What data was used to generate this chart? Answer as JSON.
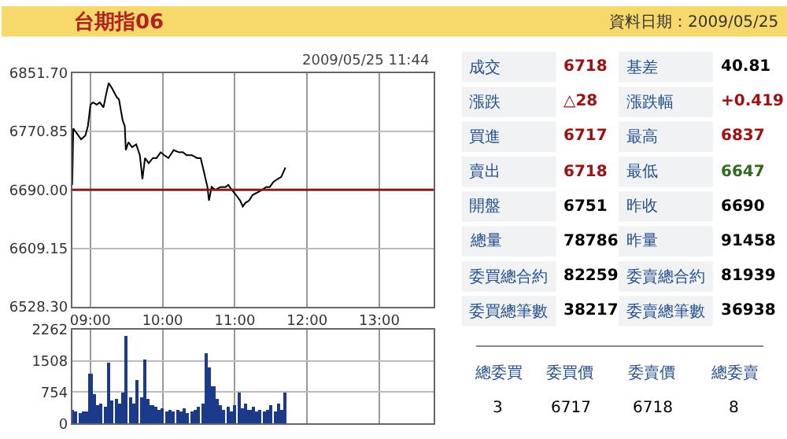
{
  "chart_data": [
    {
      "type": "line",
      "title": "台期指06",
      "subtitle": "2009/05/25 11:44",
      "x": [
        8.75,
        8.764,
        8.822,
        8.872,
        8.93,
        8.966,
        9.002,
        9.038,
        9.088,
        9.131,
        9.182,
        9.218,
        9.254,
        9.304,
        9.362,
        9.397,
        9.448,
        9.477,
        9.491,
        9.527,
        9.577,
        9.635,
        9.685,
        9.721,
        9.757,
        9.808,
        9.865,
        9.916,
        9.973,
        10.023,
        10.081,
        10.153,
        10.225,
        10.282,
        10.333,
        10.405,
        10.477,
        10.527,
        10.57,
        10.621,
        10.642,
        10.678,
        10.728,
        10.8,
        10.872,
        10.908,
        10.959,
        11.016,
        11.074,
        11.11,
        11.146,
        11.196,
        11.246,
        11.304,
        11.376,
        11.433,
        11.484,
        11.534,
        11.592,
        11.642,
        11.7
      ],
      "series": [
        {
          "color": "#000000",
          "values": [
            6697,
            6775,
            6767,
            6760,
            6765,
            6778,
            6808,
            6811,
            6808,
            6811,
            6804,
            6822,
            6838,
            6830,
            6819,
            6815,
            6786,
            6778,
            6745,
            6756,
            6749,
            6753,
            6738,
            6705,
            6734,
            6727,
            6734,
            6734,
            6742,
            6738,
            6734,
            6745,
            6742,
            6742,
            6738,
            6738,
            6734,
            6734,
            6716,
            6694,
            6675,
            6694,
            6690,
            6694,
            6694,
            6697,
            6690,
            6683,
            6675,
            6667,
            6672,
            6675,
            6683,
            6686,
            6690,
            6694,
            6694,
            6701,
            6705,
            6708,
            6721
          ]
        }
      ],
      "xlim": [
        8.75,
        13.75
      ],
      "xticks": [
        {
          "value": 9,
          "label": "09:00"
        },
        {
          "value": 10,
          "label": "10:00"
        },
        {
          "value": 11,
          "label": "11:00"
        },
        {
          "value": 12,
          "label": "12:00"
        },
        {
          "value": 13,
          "label": "13:00"
        }
      ],
      "ylim": [
        6528.3,
        6851.7
      ],
      "yticks": [
        {
          "value": 6528.3,
          "label": "6528.30"
        },
        {
          "value": 6609.15,
          "label": "6609.15"
        },
        {
          "value": 6690,
          "label": "6690.00"
        },
        {
          "value": 6770.85,
          "label": "6770.85"
        },
        {
          "value": 6851.7,
          "label": "6851.70"
        }
      ],
      "ref_lines": [
        {
          "axis": "y",
          "value": 6690,
          "color": "#8b1a1a"
        }
      ],
      "grid": true
    },
    {
      "type": "bar",
      "x": [
        8.75,
        8.8,
        8.85,
        8.9,
        8.95,
        9.0,
        9.05,
        9.1,
        9.15,
        9.2,
        9.25,
        9.3,
        9.35,
        9.4,
        9.45,
        9.5,
        9.55,
        9.6,
        9.65,
        9.7,
        9.75,
        9.8,
        9.85,
        9.9,
        9.95,
        10.0,
        10.05,
        10.1,
        10.15,
        10.2,
        10.25,
        10.3,
        10.35,
        10.4,
        10.45,
        10.5,
        10.55,
        10.6,
        10.65,
        10.7,
        10.75,
        10.8,
        10.85,
        10.9,
        10.95,
        11.0,
        11.05,
        11.1,
        11.15,
        11.2,
        11.25,
        11.3,
        11.35,
        11.4,
        11.45,
        11.5,
        11.55,
        11.6,
        11.65,
        11.7
      ],
      "series": [
        {
          "color": "#1c3a8c",
          "values": [
            350,
            300,
            250,
            300,
            280,
            1220,
            700,
            450,
            500,
            420,
            1470,
            550,
            600,
            480,
            750,
            2110,
            650,
            500,
            1040,
            620,
            1530,
            600,
            450,
            400,
            350,
            380,
            300,
            350,
            280,
            320,
            300,
            380,
            260,
            300,
            350,
            420,
            500,
            1710,
            1350,
            900,
            600,
            450,
            350,
            420,
            300,
            450,
            730,
            380,
            500,
            320,
            400,
            300,
            350,
            280,
            320,
            450,
            300,
            500,
            350,
            760
          ]
        }
      ],
      "xlim": [
        8.75,
        13.75
      ],
      "xticks": [
        {
          "value": 9,
          "label": null
        },
        {
          "value": 10,
          "label": null
        },
        {
          "value": 11,
          "label": null
        },
        {
          "value": 12,
          "label": null
        },
        {
          "value": 13,
          "label": null
        }
      ],
      "ylim": [
        0,
        2262
      ],
      "yticks": [
        0,
        754,
        1508,
        2262
      ],
      "tick_labels": "y",
      "grid": true
    },
    {
      "type": "other",
      "title": "資料日期：2009/05/25",
      "annotations": [
        "成交",
        "6718",
        "基差",
        "40.81",
        "漲跌",
        "△28",
        "漲跌幅",
        "+0.419",
        "買進",
        "6717",
        "最高",
        "6837",
        "賣出",
        "6718",
        "最低",
        "6647",
        "開盤",
        "6751",
        "昨收",
        "6690",
        "總量",
        "78786",
        "昨量",
        "91458",
        "委買總合約",
        "82259",
        "委賣總合約",
        "81939",
        "委買總筆數",
        "38217",
        "委賣總筆數",
        "36938",
        "總委買",
        "委買價",
        "委賣價",
        "總委賣",
        "3",
        "6717",
        "6718",
        "8"
      ],
      "colors": [
        "#24508f",
        "#a01010",
        "#24508f",
        "#000000",
        "#24508f",
        "#a01010",
        "#24508f",
        "#a01010",
        "#24508f",
        "#a01010",
        "#24508f",
        "#a01010",
        "#24508f",
        "#a01010",
        "#24508f",
        "#2e6b1e",
        "#24508f",
        "#000000",
        "#24508f",
        "#000000",
        "#24508f",
        "#000000",
        "#24508f",
        "#000000",
        "#24508f",
        "#000000",
        "#24508f",
        "#000000",
        "#24508f",
        "#000000",
        "#24508f",
        "#000000",
        "#24508f",
        "#24508f",
        "#24508f",
        "#24508f",
        "#000000",
        "#000000",
        "#000000",
        "#000000"
      ]
    }
  ]
}
